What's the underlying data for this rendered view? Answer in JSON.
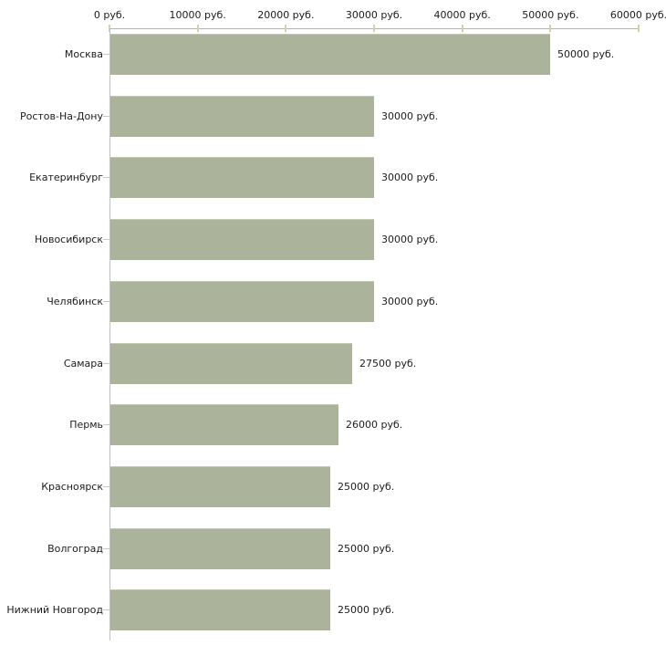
{
  "chart_data": {
    "type": "bar",
    "orientation": "horizontal",
    "title": "",
    "xlabel": "",
    "ylabel": "",
    "grid": false,
    "legend": false,
    "xlim": [
      0,
      60000
    ],
    "x_ticks": [
      0,
      10000,
      20000,
      30000,
      40000,
      50000,
      60000
    ],
    "x_tick_labels": [
      "0 руб.",
      "10000 руб.",
      "20000 руб.",
      "30000 руб.",
      "40000 руб.",
      "50000 руб.",
      "60000 руб."
    ],
    "categories": [
      "Москва",
      "Ростов-На-Дону",
      "Екатеринбург",
      "Новосибирск",
      "Челябинск",
      "Самара",
      "Пермь",
      "Красноярск",
      "Волгоград",
      "Нижний Новгород"
    ],
    "values": [
      50000,
      30000,
      30000,
      30000,
      30000,
      27500,
      26000,
      25000,
      25000,
      25000
    ],
    "value_labels": [
      "50000 руб.",
      "30000 руб.",
      "30000 руб.",
      "30000 руб.",
      "30000 руб.",
      "27500 руб.",
      "26000 руб.",
      "25000 руб.",
      "25000 руб.",
      "25000 руб."
    ]
  },
  "colors": {
    "background": "#ffffff",
    "bar_fill": "#acb39b",
    "bar_top_edge": "#c4cab1",
    "x_axis_line": "#b4b4b4",
    "x_tick_mark": "#d5d2a4",
    "y_axis_line": "#c0c0c0",
    "category_tick": "#c9c9c9",
    "text": "#1c1c1c"
  }
}
